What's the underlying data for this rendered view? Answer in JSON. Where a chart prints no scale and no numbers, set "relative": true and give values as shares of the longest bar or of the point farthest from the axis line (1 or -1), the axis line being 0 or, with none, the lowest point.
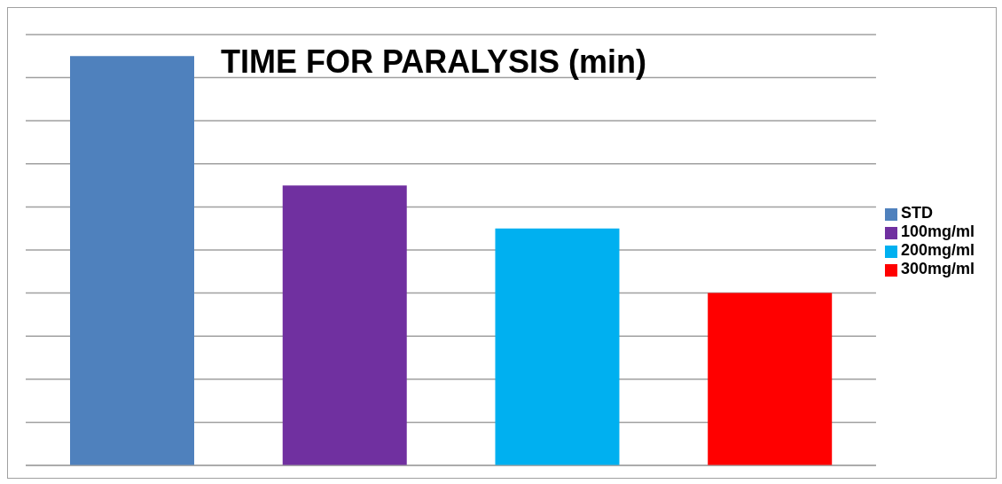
{
  "chart_data": {
    "type": "bar",
    "title": "TIME FOR PARALYSIS (min)",
    "relative": true,
    "stacked": true,
    "categories": [
      null,
      null,
      null,
      null
    ],
    "series": [
      {
        "name": "STD",
        "color": "#4f81bd",
        "values": [
          1,
          null,
          null,
          null
        ]
      },
      {
        "name": "100mg/ml",
        "color": "#7030a0",
        "values": [
          null,
          0.684,
          null,
          null
        ]
      },
      {
        "name": "200mg/ml",
        "color": "#00b0f0",
        "values": [
          null,
          null,
          0.579,
          null
        ]
      },
      {
        "name": "300mg/ml",
        "color": "#ff0000",
        "values": [
          null,
          null,
          null,
          0.421
        ]
      }
    ],
    "grid": "y",
    "legend": "right"
  }
}
